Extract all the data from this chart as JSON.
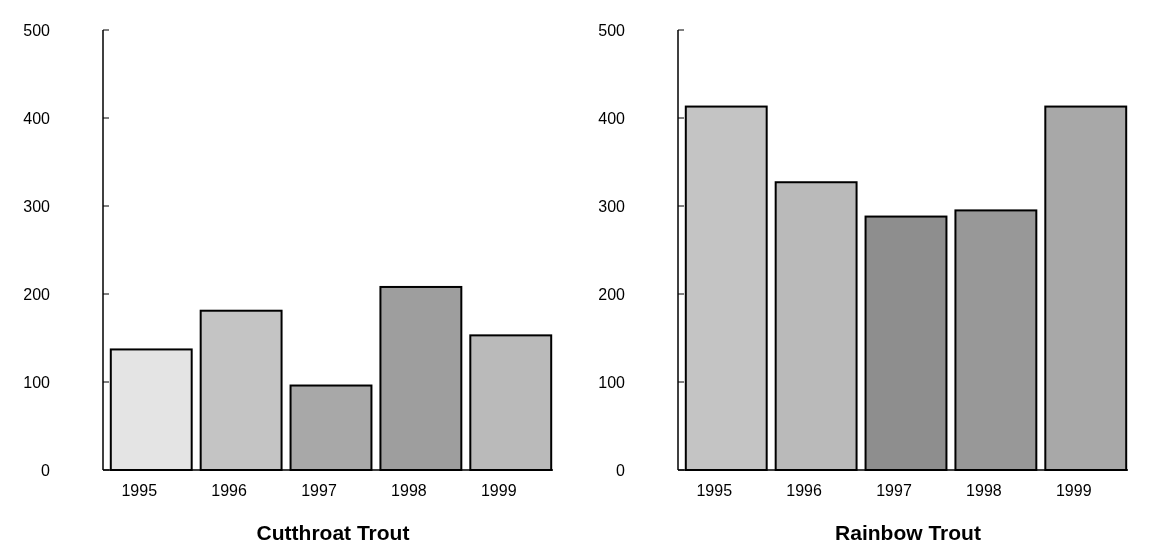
{
  "chart_data": [
    {
      "type": "bar",
      "title": "Cutthroat Trout",
      "categories": [
        "1995",
        "1996",
        "1997",
        "1998",
        "1999"
      ],
      "values": [
        137,
        181,
        96,
        208,
        153
      ],
      "colors": [
        "#e4e4e4",
        "#c4c4c4",
        "#a8a8a8",
        "#9e9e9e",
        "#bababa"
      ],
      "ylim": [
        0,
        500
      ],
      "yticks": [
        0,
        100,
        200,
        300,
        400,
        500
      ],
      "grid": false
    },
    {
      "type": "bar",
      "title": "Rainbow Trout",
      "categories": [
        "1995",
        "1996",
        "1997",
        "1998",
        "1999"
      ],
      "values": [
        413,
        327,
        288,
        295,
        413
      ],
      "colors": [
        "#c4c4c4",
        "#bababa",
        "#8e8e8e",
        "#989898",
        "#a8a8a8"
      ],
      "ylim": [
        0,
        500
      ],
      "yticks": [
        0,
        100,
        200,
        300,
        400,
        500
      ],
      "grid": false
    }
  ]
}
